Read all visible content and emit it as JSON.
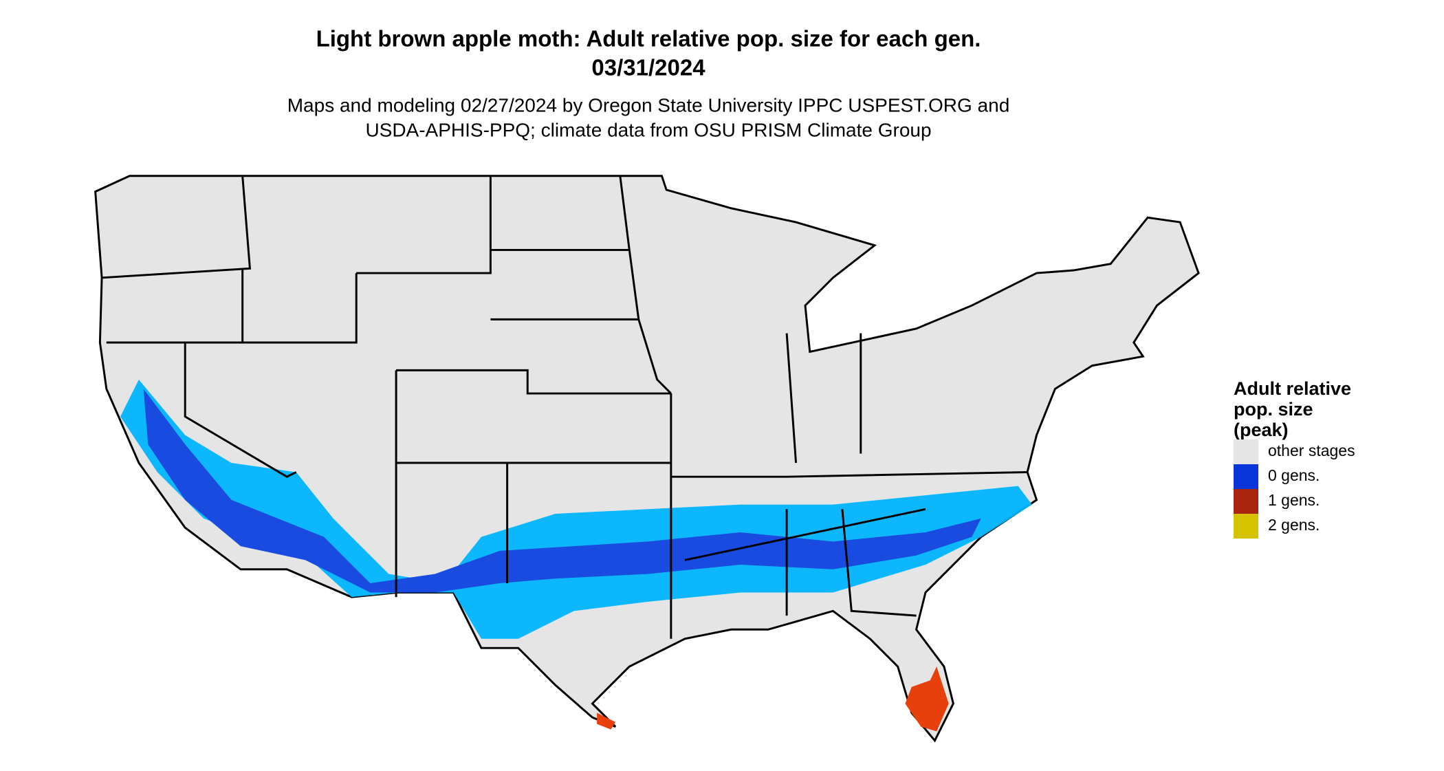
{
  "title": "Light brown apple moth: Adult relative pop. size for each gen.",
  "date": "03/31/2024",
  "subtitle": [
    "Maps and modeling 02/27/2024 by Oregon State University IPPC USPEST.ORG and",
    "USDA-APHIS-PPQ; climate data from OSU PRISM Climate Group"
  ],
  "legend": {
    "title": [
      "Adult relative",
      "pop. size",
      "(peak)"
    ],
    "items": [
      {
        "label": "other stages",
        "color": "#e5e5e5"
      },
      {
        "label": "0 gens.",
        "color": "#0a35d8"
      },
      {
        "label": "1 gens.",
        "color": "#a8240f"
      },
      {
        "label": "2 gens.",
        "color": "#d6c300"
      }
    ]
  }
}
